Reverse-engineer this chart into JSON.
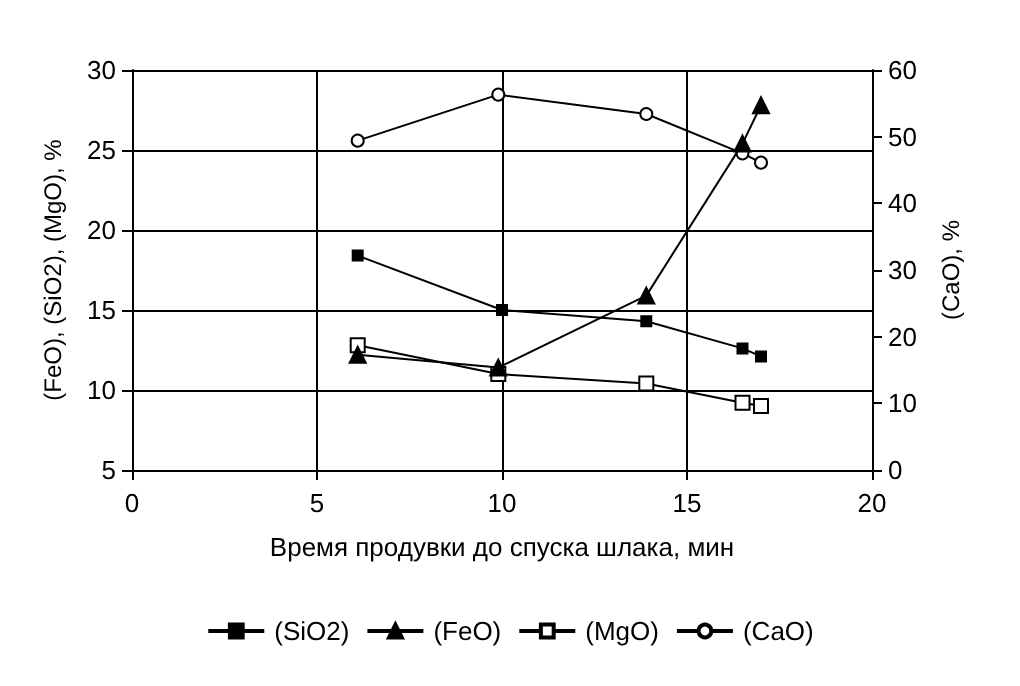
{
  "chart_data": {
    "type": "line",
    "xlabel": "Время продувки до спуска шлака, мин",
    "ylabel": "(FeO), (SiO2), (MgO), %",
    "y2label": "(CaO), %",
    "xlim": [
      0,
      20
    ],
    "xticks": [
      0,
      5,
      10,
      15,
      20
    ],
    "ylim": [
      5,
      30
    ],
    "yticks": [
      5,
      10,
      15,
      20,
      25,
      30
    ],
    "y2lim": [
      0,
      60
    ],
    "y2ticks": [
      0,
      10,
      20,
      30,
      40,
      50,
      60
    ],
    "grid": true,
    "legend": "bottom",
    "line_style": "solid",
    "series": [
      {
        "name": "(SiO2)",
        "color": "#000000",
        "marker": "square",
        "x": [
          6.1,
          10,
          13.9,
          16.5,
          17
        ],
        "values": [
          18.4,
          15.0,
          14.3,
          12.6,
          12.1
        ]
      },
      {
        "name": "(FeO)",
        "color": "#000000",
        "marker": "triangle",
        "x": [
          6.1,
          9.9,
          13.9,
          16.5,
          17
        ],
        "values": [
          12.2,
          11.4,
          15.9,
          25.4,
          27.8
        ]
      },
      {
        "name": "(MgO)",
        "color": "#000000",
        "marker": "square-open",
        "x": [
          6.1,
          9.9,
          13.9,
          16.5,
          17
        ],
        "values": [
          12.8,
          11.0,
          10.4,
          9.2,
          9.0
        ]
      },
      {
        "name": "(CaO)",
        "color": "#000000",
        "marker": "circle-open",
        "axis": "y2",
        "x": [
          6.1,
          9.9,
          13.9,
          16.5,
          17
        ],
        "values": [
          49.4,
          56.3,
          53.4,
          47.5,
          46.1
        ]
      }
    ]
  }
}
